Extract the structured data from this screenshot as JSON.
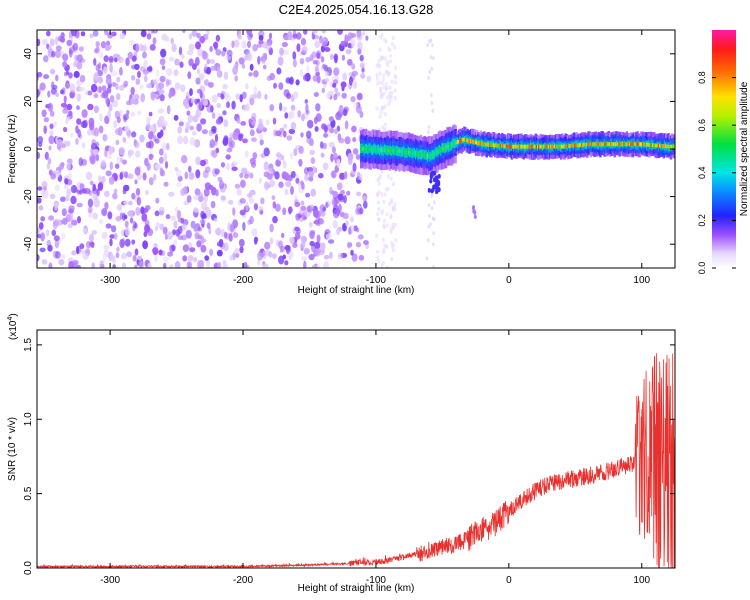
{
  "title": "C2E4.2025.054.16.13.G28",
  "colors": {
    "snr_line": "#e8312e",
    "background": "#ffffff",
    "axis": "#000000"
  },
  "chart_data": [
    {
      "type": "heatmap",
      "xlabel": "Height of straight line (km)",
      "ylabel": "Frequency (Hz)",
      "xlim": [
        -355,
        125
      ],
      "ylim": [
        -50,
        50
      ],
      "xticks": [
        -300,
        -200,
        -100,
        0,
        100
      ],
      "xtick_labels": [
        "-300",
        "-200",
        "-100",
        "0",
        "100"
      ],
      "yticks": [
        -40,
        -20,
        0,
        20,
        40
      ],
      "ytick_labels": [
        "-40",
        "-20",
        "0",
        "20",
        "40"
      ],
      "colorbar": {
        "label": "Normalized spectral amplitude",
        "range": [
          0,
          1
        ],
        "ticks": [
          0.0,
          0.2,
          0.4,
          0.6,
          0.8
        ],
        "tick_labels": [
          "0.0",
          "0.2",
          "0.4",
          "0.6",
          "0.8"
        ],
        "colormap": "white-purple-blue-cyan-green-yellow-red-magenta"
      },
      "description_values": {
        "noise_region_x": [
          -355,
          -105
        ],
        "signal_band_center_hz": [
          [
            -110,
            0
          ],
          [
            -80,
            -1
          ],
          [
            -60,
            -3
          ],
          [
            -50,
            0
          ],
          [
            -35,
            4
          ],
          [
            -20,
            2
          ],
          [
            0,
            1
          ],
          [
            20,
            1
          ],
          [
            40,
            1
          ],
          [
            60,
            2
          ],
          [
            80,
            2
          ],
          [
            100,
            2
          ],
          [
            120,
            1
          ]
        ]
      }
    },
    {
      "type": "line",
      "xlabel": "Height of straight line (km)",
      "ylabel": "SNR (10 * v/v)",
      "scale_label": "(x10",
      "scale_exponent": "4",
      "scale_close": ")",
      "xlim": [
        -355,
        125
      ],
      "ylim": [
        0,
        1.6
      ],
      "xticks": [
        -300,
        -200,
        -100,
        0,
        100
      ],
      "xtick_labels": [
        "-300",
        "-200",
        "-100",
        "0",
        "100"
      ],
      "yticks": [
        0.0,
        0.5,
        1.0,
        1.5
      ],
      "ytick_labels": [
        "0.0",
        "0.5",
        "1.0",
        "1.5"
      ],
      "series": [
        {
          "x": [
            -355,
            -300,
            -250,
            -200,
            -150,
            -120,
            -100,
            -90,
            -80,
            -70,
            -60,
            -50,
            -40,
            -30,
            -20,
            -10,
            0,
            10,
            20,
            30,
            40,
            50,
            60,
            70,
            80,
            90,
            100,
            105,
            110,
            115,
            120,
            125
          ],
          "y": [
            0.01,
            0.01,
            0.01,
            0.01,
            0.02,
            0.03,
            0.04,
            0.05,
            0.07,
            0.09,
            0.12,
            0.14,
            0.16,
            0.2,
            0.25,
            0.3,
            0.38,
            0.46,
            0.52,
            0.56,
            0.59,
            0.6,
            0.62,
            0.64,
            0.67,
            0.69,
            0.72,
            0.74,
            0.75,
            0.72,
            0.7,
            0.68
          ]
        }
      ]
    }
  ]
}
